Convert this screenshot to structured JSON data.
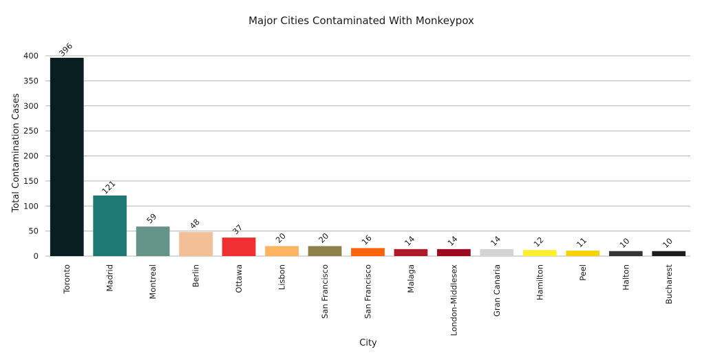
{
  "chart_data": {
    "type": "bar",
    "title": "Major Cities Contaminated With Monkeypox",
    "xlabel": "City",
    "ylabel": "Total Contamination Cases",
    "ylim": [
      0,
      400
    ],
    "yticks": [
      0,
      50,
      100,
      150,
      200,
      250,
      300,
      350,
      400
    ],
    "grid": true,
    "categories": [
      "Toronto",
      "Madrid",
      "Montreal",
      "Berlin",
      "Ottawa",
      "Lisbon",
      "San Francisco",
      "San Francisco",
      "Malaga",
      "London-Middlesex",
      "Gran Canaria",
      "Hamilton",
      "Peel",
      "Halton",
      "Bucharest"
    ],
    "values": [
      396,
      121,
      59,
      48,
      37,
      20,
      20,
      16,
      14,
      14,
      14,
      12,
      11,
      10,
      10
    ],
    "colors": [
      "#091e21",
      "#1e7873",
      "#659488",
      "#f3bf97",
      "#ef2f31",
      "#fcb45f",
      "#8c814b",
      "#fc640b",
      "#ad1b29",
      "#9c0921",
      "#d4d4d4",
      "#fbee2c",
      "#fbd20a",
      "#353535",
      "#1d1d1d"
    ]
  }
}
